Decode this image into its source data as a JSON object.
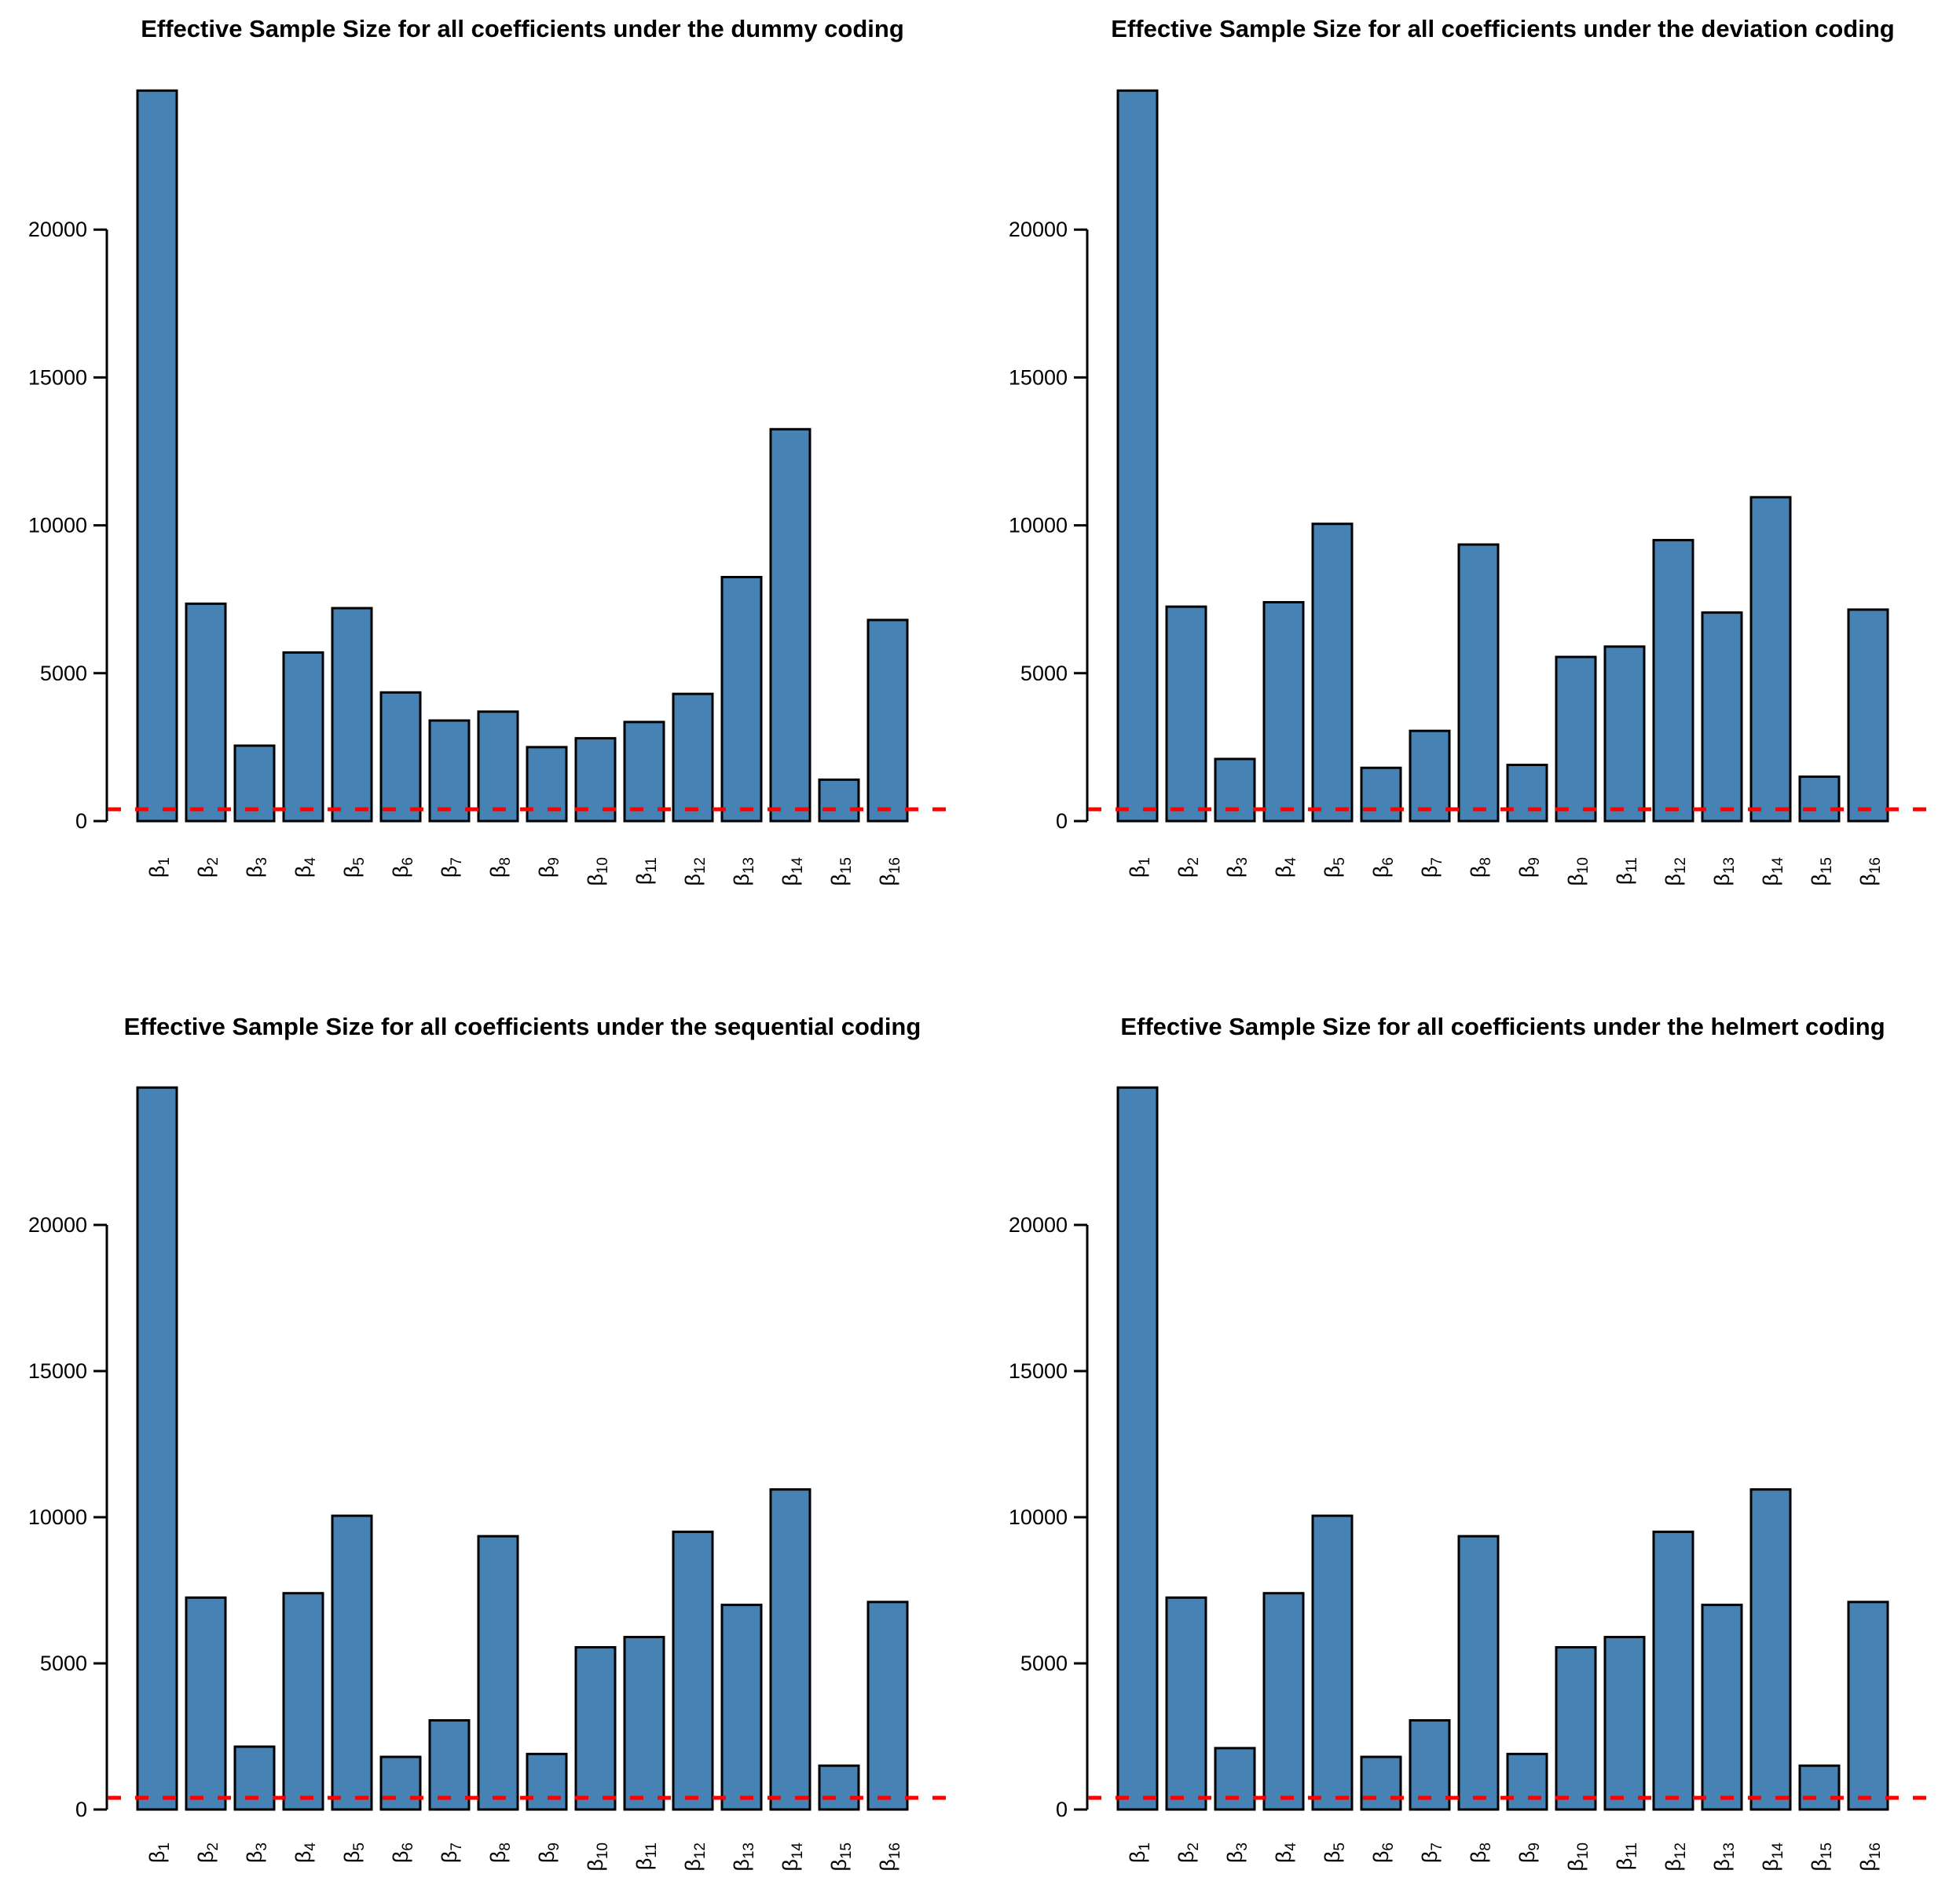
{
  "figure": {
    "background": "#ffffff",
    "colors": {
      "bar_fill": "#4682B4",
      "bar_border": "#000000",
      "reference_line": "#FF0000",
      "axis": "#000000"
    }
  },
  "chart_data": [
    {
      "type": "bar",
      "coding": "dummy",
      "title": "Effective Sample Size for all coefficients under the dummy coding",
      "categories": [
        "β1",
        "β2",
        "β3",
        "β4",
        "β5",
        "β6",
        "β7",
        "β8",
        "β9",
        "β10",
        "β11",
        "β12",
        "β13",
        "β14",
        "β15",
        "β16"
      ],
      "values": [
        24700,
        7350,
        2550,
        5700,
        7200,
        4350,
        3400,
        3700,
        2500,
        2800,
        3350,
        4300,
        8250,
        13250,
        1400,
        6800
      ],
      "reference_line_value": 400,
      "yticks": [
        0,
        5000,
        10000,
        15000,
        20000
      ],
      "ytick_labels": [
        "0",
        "5000",
        "10000",
        "15000",
        "20000"
      ],
      "ylim": [
        0,
        25000
      ],
      "xlabel": "",
      "ylabel": "",
      "grid": false,
      "legend": "none"
    },
    {
      "type": "bar",
      "coding": "deviation",
      "title": "Effective Sample Size for all coefficients under the deviation coding",
      "categories": [
        "β1",
        "β2",
        "β3",
        "β4",
        "β5",
        "β6",
        "β7",
        "β8",
        "β9",
        "β10",
        "β11",
        "β12",
        "β13",
        "β14",
        "β15",
        "β16"
      ],
      "values": [
        24700,
        7250,
        2100,
        7400,
        10050,
        1800,
        3050,
        9350,
        1900,
        5550,
        5900,
        9500,
        7050,
        10950,
        1500,
        7150
      ],
      "reference_line_value": 400,
      "yticks": [
        0,
        5000,
        10000,
        15000,
        20000
      ],
      "ytick_labels": [
        "0",
        "5000",
        "10000",
        "15000",
        "20000"
      ],
      "ylim": [
        0,
        25000
      ],
      "xlabel": "",
      "ylabel": "",
      "grid": false,
      "legend": "none"
    },
    {
      "type": "bar",
      "coding": "sequential",
      "title": "Effective Sample Size for all coefficients under the sequential coding",
      "categories": [
        "β1",
        "β2",
        "β3",
        "β4",
        "β5",
        "β6",
        "β7",
        "β8",
        "β9",
        "β10",
        "β11",
        "β12",
        "β13",
        "β14",
        "β15",
        "β16"
      ],
      "values": [
        24700,
        7250,
        2150,
        7400,
        10050,
        1800,
        3050,
        9350,
        1900,
        5550,
        5900,
        9500,
        7000,
        10950,
        1500,
        7100
      ],
      "reference_line_value": 400,
      "yticks": [
        0,
        5000,
        10000,
        15000,
        20000
      ],
      "ytick_labels": [
        "0",
        "5000",
        "10000",
        "15000",
        "20000"
      ],
      "ylim": [
        0,
        25000
      ],
      "xlabel": "",
      "ylabel": "",
      "grid": false,
      "legend": "none"
    },
    {
      "type": "bar",
      "coding": "helmert",
      "title": "Effective Sample Size for all coefficients under the helmert coding",
      "categories": [
        "β1",
        "β2",
        "β3",
        "β4",
        "β5",
        "β6",
        "β7",
        "β8",
        "β9",
        "β10",
        "β11",
        "β12",
        "β13",
        "β14",
        "β15",
        "β16"
      ],
      "values": [
        24700,
        7250,
        2100,
        7400,
        10050,
        1800,
        3050,
        9350,
        1900,
        5550,
        5900,
        9500,
        7000,
        10950,
        1500,
        7100
      ],
      "reference_line_value": 400,
      "yticks": [
        0,
        5000,
        10000,
        15000,
        20000
      ],
      "ytick_labels": [
        "0",
        "5000",
        "10000",
        "15000",
        "20000"
      ],
      "ylim": [
        0,
        25000
      ],
      "xlabel": "",
      "ylabel": "",
      "grid": false,
      "legend": "none"
    }
  ]
}
